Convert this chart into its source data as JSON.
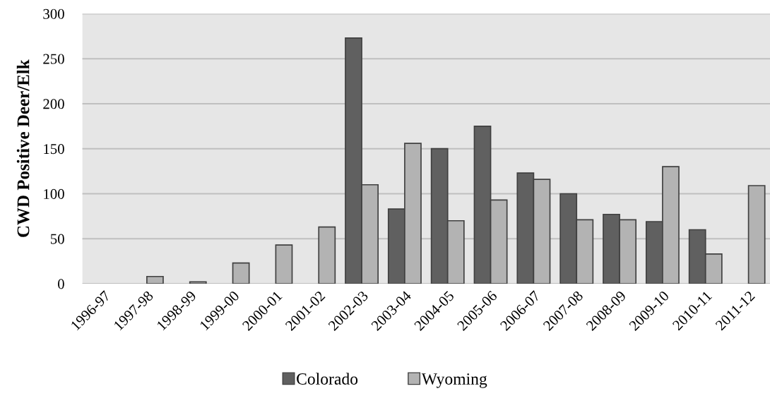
{
  "chart_data": {
    "type": "bar",
    "ylabel": "CWD Positive Deer/Elk",
    "categories": [
      "1996-97",
      "1997-98",
      "1998-99",
      "1999-00",
      "2000-01",
      "2001-02",
      "2002-03",
      "2003-04",
      "2004-05",
      "2005-06",
      "2006-07",
      "2007-08",
      "2008-09",
      "2009-10",
      "2010-11",
      "2011-12"
    ],
    "series": [
      {
        "name": "Colorado",
        "color": "#606060",
        "values": [
          null,
          null,
          null,
          null,
          null,
          null,
          273,
          83,
          150,
          175,
          123,
          100,
          77,
          69,
          60,
          null
        ]
      },
      {
        "name": "Wyoming",
        "color": "#b3b3b3",
        "values": [
          null,
          8,
          2,
          23,
          43,
          63,
          110,
          156,
          70,
          93,
          116,
          71,
          71,
          130,
          33,
          109
        ]
      }
    ],
    "ylim": [
      0,
      300
    ],
    "yticks": [
      0,
      50,
      100,
      150,
      200,
      250,
      300
    ],
    "grid": "y",
    "legend": "bottom"
  }
}
